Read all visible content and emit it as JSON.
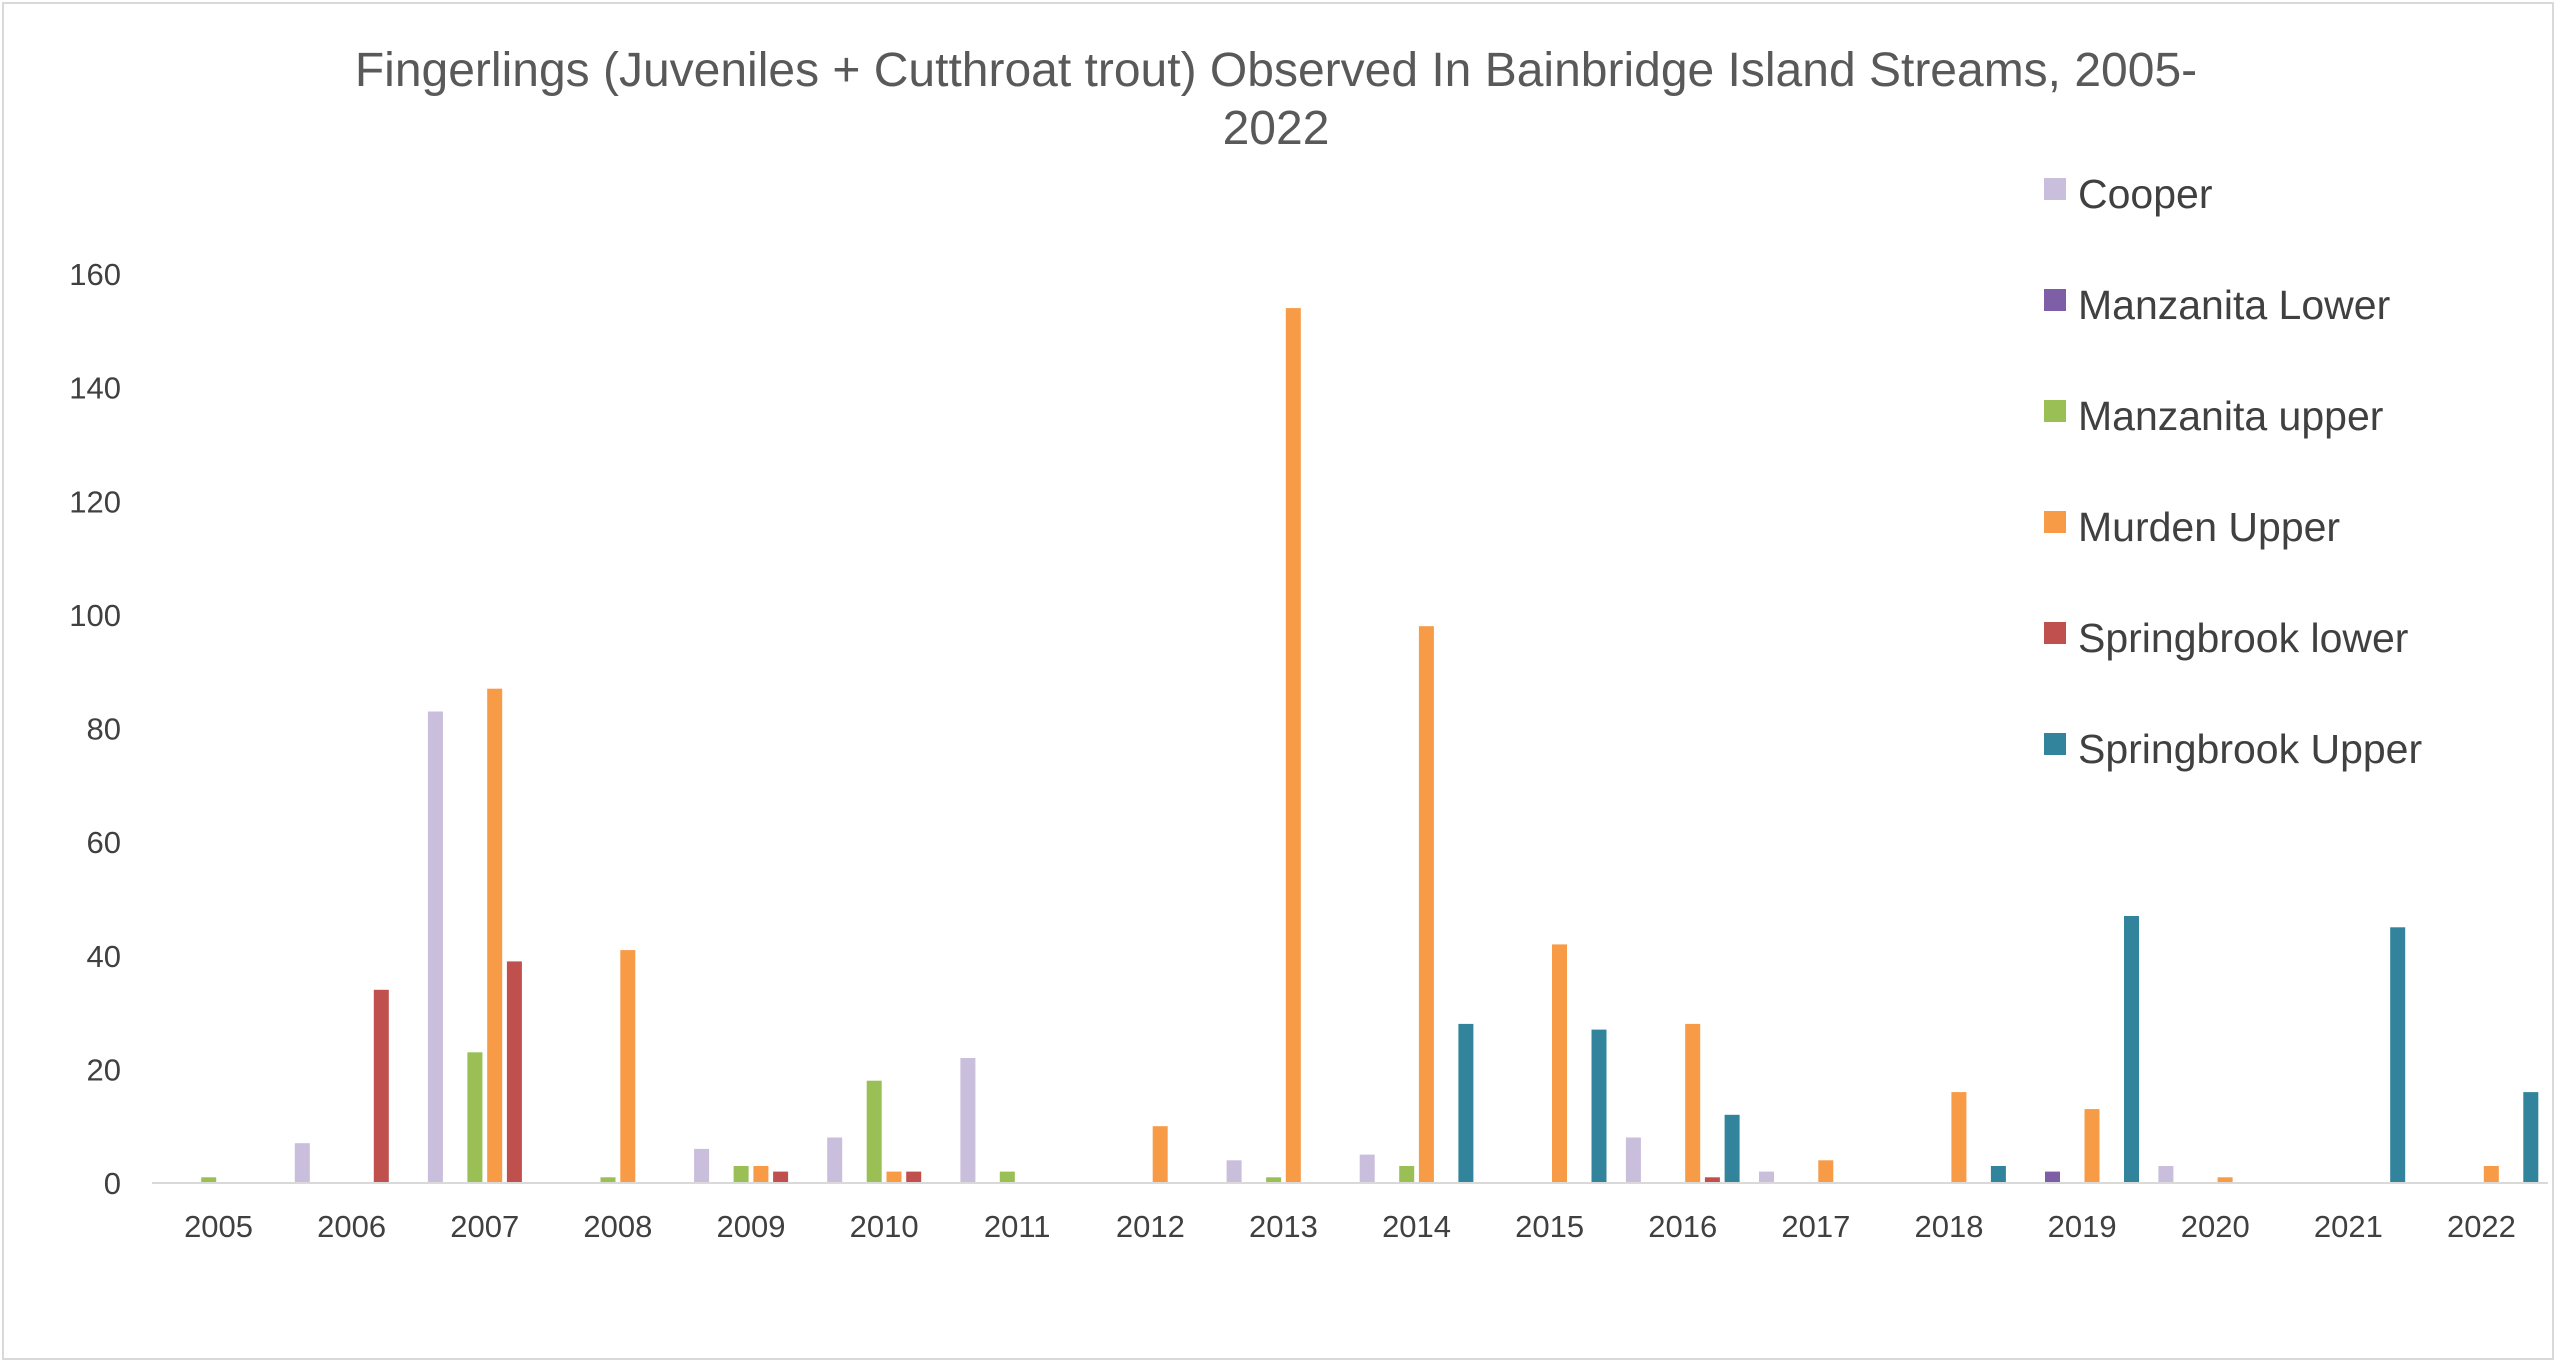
{
  "chart_data": {
    "type": "bar",
    "title": "Fingerlings (Juveniles + Cutthroat trout) Observed In Bainbridge Island Streams, 2005-2022",
    "title_lines": [
      "Fingerlings (Juveniles + Cutthroat trout) Observed In Bainbridge Island Streams, 2005-",
      "2022"
    ],
    "xlabel": "",
    "ylabel": "",
    "categories": [
      "2005",
      "2006",
      "2007",
      "2008",
      "2009",
      "2010",
      "2011",
      "2012",
      "2013",
      "2014",
      "2015",
      "2016",
      "2017",
      "2018",
      "2019",
      "2020",
      "2021",
      "2022"
    ],
    "ylim": [
      0,
      160
    ],
    "yticks": [
      0,
      20,
      40,
      60,
      80,
      100,
      120,
      140,
      160
    ],
    "grid": false,
    "legend_position": "right",
    "series": [
      {
        "name": "Cooper",
        "color": "#c9bedb",
        "values": [
          0,
          7,
          83,
          0,
          6,
          8,
          22,
          0,
          4,
          5,
          0,
          8,
          2,
          0,
          0,
          3,
          0,
          0
        ]
      },
      {
        "name": "Manzanita Lower",
        "color": "#7e5ea7",
        "values": [
          0,
          0,
          0,
          0,
          0,
          0,
          0,
          0,
          0,
          0,
          0,
          0,
          0,
          0,
          2,
          0,
          0,
          0
        ]
      },
      {
        "name": "Manzanita upper",
        "color": "#9abf55",
        "values": [
          1,
          0,
          23,
          1,
          3,
          18,
          2,
          0,
          1,
          3,
          0,
          0,
          0,
          0,
          0,
          0,
          0,
          0
        ]
      },
      {
        "name": "Murden Upper",
        "color": "#f79b46",
        "values": [
          0,
          0,
          87,
          41,
          3,
          2,
          0,
          10,
          154,
          98,
          42,
          28,
          4,
          16,
          13,
          1,
          0,
          3
        ]
      },
      {
        "name": "Springbrook lower",
        "color": "#c0504d",
        "values": [
          0,
          34,
          39,
          0,
          2,
          2,
          0,
          0,
          0,
          0,
          0,
          1,
          0,
          0,
          0,
          0,
          0,
          0
        ]
      },
      {
        "name": "Springbrook Upper",
        "color": "#31849b",
        "values": [
          0,
          0,
          0,
          0,
          0,
          0,
          0,
          0,
          0,
          28,
          27,
          12,
          0,
          3,
          47,
          0,
          45,
          16
        ]
      }
    ]
  }
}
